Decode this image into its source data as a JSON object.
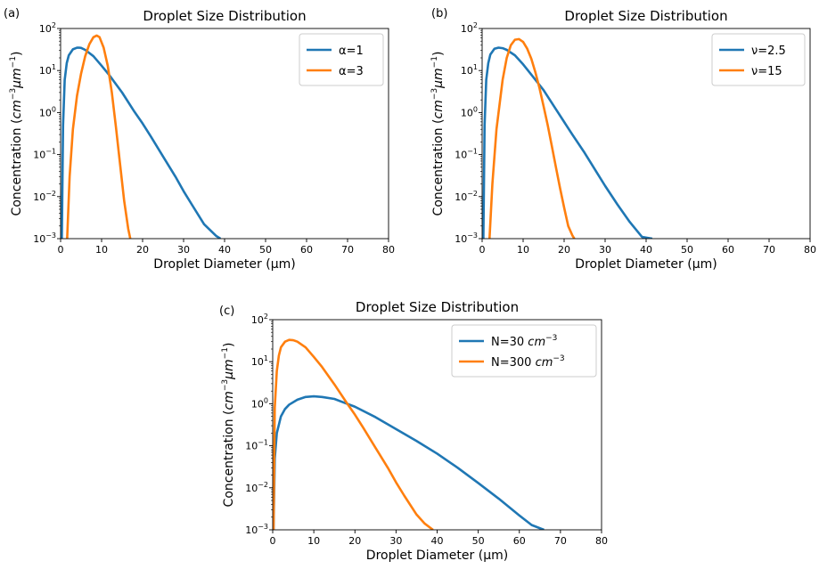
{
  "figure": {
    "colors": {
      "series1": "#1f77b4",
      "series2": "#ff7f0e"
    }
  },
  "chart_data": [
    {
      "panel_label": "(a)",
      "type": "line",
      "title": "Droplet Size Distribution",
      "xlabel": "Droplet Diameter (µm)",
      "ylabel": {
        "main": "Concentration (",
        "cm": "cm",
        "exp1": "−3",
        "um": "μm",
        "exp2": "−1",
        "close": ")"
      },
      "x_scale": "linear",
      "y_scale": "log",
      "xlim": [
        0,
        80
      ],
      "ylim": [
        0.001,
        100
      ],
      "xticks": [
        0,
        10,
        20,
        30,
        40,
        50,
        60,
        70,
        80
      ],
      "xtick_labels": [
        "0",
        "10",
        "20",
        "30",
        "40",
        "50",
        "60",
        "70",
        "80"
      ],
      "yticks": [
        {
          "value": 0.001,
          "base": "10",
          "exp": "−3"
        },
        {
          "value": 0.01,
          "base": "10",
          "exp": "−2"
        },
        {
          "value": 0.1,
          "base": "10",
          "exp": "−1"
        },
        {
          "value": 1,
          "base": "10",
          "exp": "0"
        },
        {
          "value": 10,
          "base": "10",
          "exp": "1"
        },
        {
          "value": 100,
          "base": "10",
          "exp": "2"
        }
      ],
      "grid": false,
      "legend_position": "top-right",
      "series": [
        {
          "name": "α=1",
          "color": "#1f77b4",
          "x": [
            0.3,
            0.6,
            1,
            1.5,
            2,
            3,
            4,
            4.5,
            5,
            6,
            8,
            10,
            12,
            15,
            18,
            20,
            22,
            25,
            28,
            30,
            32,
            35,
            38,
            39
          ],
          "y": [
            0.001,
            0.5,
            6,
            15,
            23,
            32,
            35,
            35,
            34.5,
            31,
            22,
            13,
            7.5,
            3,
            1.05,
            0.55,
            0.27,
            0.09,
            0.03,
            0.0135,
            0.0065,
            0.0022,
            0.00115,
            0.001
          ]
        },
        {
          "name": "α=3",
          "color": "#ff7f0e",
          "x": [
            1.6,
            2.2,
            3,
            4,
            5,
            6,
            7,
            8,
            8.8,
            9.5,
            10.5,
            11.5,
            12.5,
            13.5,
            14.5,
            15.5,
            16.5,
            17
          ],
          "y": [
            0.001,
            0.03,
            0.4,
            2.5,
            8.5,
            22,
            42,
            62,
            68,
            62,
            35,
            13,
            3,
            0.45,
            0.06,
            0.008,
            0.0017,
            0.001
          ]
        }
      ]
    },
    {
      "panel_label": "(b)",
      "type": "line",
      "title": "Droplet Size Distribution",
      "xlabel": "Droplet Diameter (µm)",
      "ylabel": {
        "main": "Concentration (",
        "cm": "cm",
        "exp1": "−3",
        "um": "μm",
        "exp2": "−1",
        "close": ")"
      },
      "x_scale": "linear",
      "y_scale": "log",
      "xlim": [
        0,
        80
      ],
      "ylim": [
        0.001,
        100
      ],
      "xticks": [
        0,
        10,
        20,
        30,
        40,
        50,
        60,
        70,
        80
      ],
      "xtick_labels": [
        "0",
        "10",
        "20",
        "30",
        "40",
        "50",
        "60",
        "70",
        "80"
      ],
      "yticks": [
        {
          "value": 0.001,
          "base": "10",
          "exp": "−3"
        },
        {
          "value": 0.01,
          "base": "10",
          "exp": "−2"
        },
        {
          "value": 0.1,
          "base": "10",
          "exp": "−1"
        },
        {
          "value": 1,
          "base": "10",
          "exp": "0"
        },
        {
          "value": 10,
          "base": "10",
          "exp": "1"
        },
        {
          "value": 100,
          "base": "10",
          "exp": "2"
        }
      ],
      "grid": false,
      "legend_position": "top-right",
      "series": [
        {
          "name": "ν=2.5",
          "color": "#1f77b4",
          "x": [
            0.3,
            0.6,
            1,
            1.5,
            2,
            3,
            4,
            5,
            6,
            8,
            10,
            12,
            15,
            18,
            20,
            22,
            25,
            28,
            30,
            33,
            36,
            39,
            41.5
          ],
          "y": [
            0.001,
            0.5,
            6,
            15,
            24,
            33,
            35,
            34,
            31,
            23,
            14,
            8,
            3.4,
            1.2,
            0.6,
            0.3,
            0.11,
            0.037,
            0.018,
            0.0065,
            0.0025,
            0.0011,
            0.001
          ]
        },
        {
          "name": "ν=15",
          "color": "#ff7f0e",
          "x": [
            1.8,
            2.5,
            3.5,
            5,
            6,
            7,
            8,
            9,
            10,
            11,
            12,
            13,
            14,
            15,
            16,
            17,
            18,
            19,
            20,
            21,
            22,
            22.5
          ],
          "y": [
            0.001,
            0.02,
            0.4,
            6,
            20,
            40,
            54,
            56,
            48,
            33,
            19,
            9,
            3.8,
            1.4,
            0.5,
            0.16,
            0.05,
            0.016,
            0.0055,
            0.002,
            0.0012,
            0.001
          ]
        }
      ]
    },
    {
      "panel_label": "(c)",
      "type": "line",
      "title": "Droplet Size Distribution",
      "xlabel": "Droplet Diameter (µm)",
      "ylabel": {
        "main": "Concentration (",
        "cm": "cm",
        "exp1": "−3",
        "um": "μm",
        "exp2": "−1",
        "close": ")"
      },
      "x_scale": "linear",
      "y_scale": "log",
      "xlim": [
        0,
        80
      ],
      "ylim": [
        0.001,
        100
      ],
      "xticks": [
        0,
        10,
        20,
        30,
        40,
        50,
        60,
        70,
        80
      ],
      "xtick_labels": [
        "0",
        "10",
        "20",
        "30",
        "40",
        "50",
        "60",
        "70",
        "80"
      ],
      "yticks": [
        {
          "value": 0.001,
          "base": "10",
          "exp": "−3"
        },
        {
          "value": 0.01,
          "base": "10",
          "exp": "−2"
        },
        {
          "value": 0.1,
          "base": "10",
          "exp": "−1"
        },
        {
          "value": 1,
          "base": "10",
          "exp": "0"
        },
        {
          "value": 10,
          "base": "10",
          "exp": "1"
        },
        {
          "value": 100,
          "base": "10",
          "exp": "2"
        }
      ],
      "grid": false,
      "legend_position": "top-right",
      "series": [
        {
          "name": "N=30",
          "name_unit": "cm",
          "name_exp": "−3",
          "color": "#1f77b4",
          "x": [
            0.2,
            0.5,
            1,
            2,
            3,
            4,
            6,
            8,
            10,
            12,
            15,
            20,
            25,
            30,
            35,
            40,
            45,
            50,
            55,
            60,
            63,
            66
          ],
          "y": [
            0.001,
            0.05,
            0.2,
            0.5,
            0.75,
            0.95,
            1.25,
            1.45,
            1.5,
            1.45,
            1.3,
            0.85,
            0.48,
            0.25,
            0.13,
            0.065,
            0.03,
            0.013,
            0.0055,
            0.0022,
            0.0013,
            0.001
          ]
        },
        {
          "name": "N=300",
          "name_unit": "cm",
          "name_exp": "−3",
          "color": "#ff7f0e",
          "x": [
            0.2,
            0.5,
            1,
            1.5,
            2,
            3,
            4,
            5,
            6,
            8,
            10,
            12,
            15,
            18,
            20,
            22,
            25,
            28,
            30,
            32,
            35,
            37,
            39
          ],
          "y": [
            0.001,
            0.8,
            6,
            14,
            22,
            30,
            33,
            32.5,
            30,
            22,
            13,
            7.5,
            2.9,
            1.05,
            0.55,
            0.27,
            0.09,
            0.03,
            0.0135,
            0.0065,
            0.0023,
            0.0014,
            0.001
          ]
        }
      ]
    }
  ]
}
